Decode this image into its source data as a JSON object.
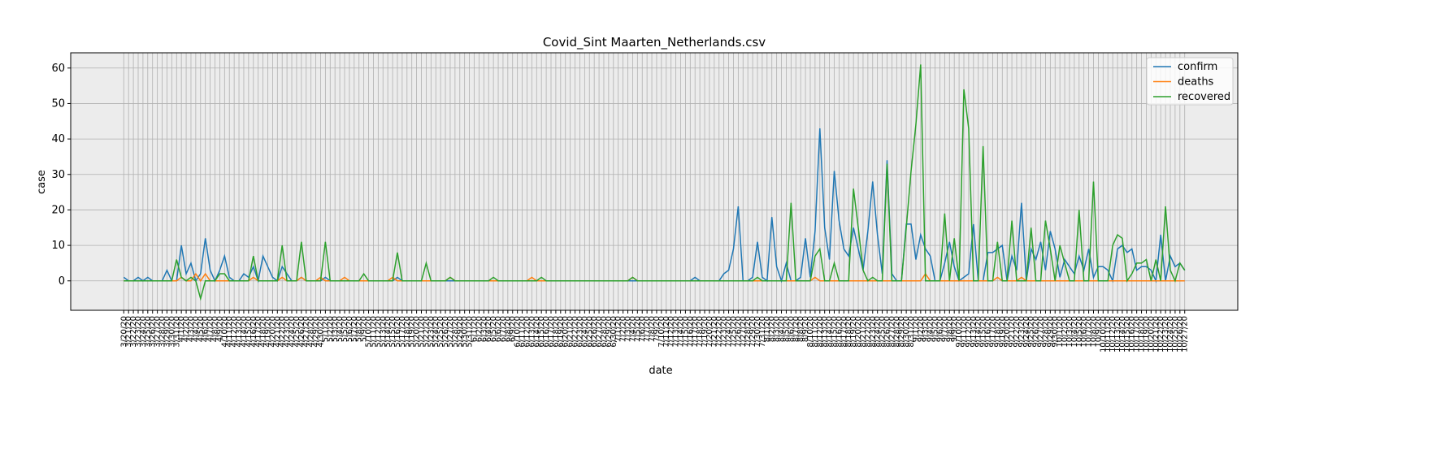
{
  "chart_data": {
    "type": "line",
    "title": "Covid_Sint Maarten_Netherlands.csv",
    "xlabel": "date",
    "ylabel": "case",
    "categories": [
      "3/20/20",
      "3/21/20",
      "3/22/20",
      "3/23/20",
      "3/24/20",
      "3/25/20",
      "3/26/20",
      "3/27/20",
      "3/28/20",
      "3/29/20",
      "3/30/20",
      "3/31/20",
      "4/1/20",
      "4/2/20",
      "4/3/20",
      "4/4/20",
      "4/5/20",
      "4/6/20",
      "4/7/20",
      "4/8/20",
      "4/9/20",
      "4/10/20",
      "4/11/20",
      "4/12/20",
      "4/13/20",
      "4/14/20",
      "4/15/20",
      "4/16/20",
      "4/17/20",
      "4/18/20",
      "4/19/20",
      "4/20/20",
      "4/21/20",
      "4/22/20",
      "4/23/20",
      "4/24/20",
      "4/25/20",
      "4/26/20",
      "4/27/20",
      "4/28/20",
      "4/29/20",
      "4/30/20",
      "5/1/20",
      "5/2/20",
      "5/3/20",
      "5/4/20",
      "5/5/20",
      "5/6/20",
      "5/7/20",
      "5/8/20",
      "5/9/20",
      "5/10/20",
      "5/11/20",
      "5/12/20",
      "5/13/20",
      "5/14/20",
      "5/15/20",
      "5/16/20",
      "5/17/20",
      "5/18/20",
      "5/19/20",
      "5/20/20",
      "5/21/20",
      "5/22/20",
      "5/23/20",
      "5/24/20",
      "5/25/20",
      "5/26/20",
      "5/27/20",
      "5/28/20",
      "5/29/20",
      "5/30/20",
      "5/31/20",
      "6/1/20",
      "6/2/20",
      "6/3/20",
      "6/4/20",
      "6/5/20",
      "6/6/20",
      "6/7/20",
      "6/8/20",
      "6/9/20",
      "6/10/20",
      "6/11/20",
      "6/12/20",
      "6/13/20",
      "6/14/20",
      "6/15/20",
      "6/16/20",
      "6/17/20",
      "6/18/20",
      "6/19/20",
      "6/20/20",
      "6/21/20",
      "6/22/20",
      "6/23/20",
      "6/24/20",
      "6/25/20",
      "6/26/20",
      "6/27/20",
      "6/28/20",
      "6/29/20",
      "6/30/20",
      "7/1/20",
      "7/2/20",
      "7/3/20",
      "7/4/20",
      "7/5/20",
      "7/6/20",
      "7/7/20",
      "7/8/20",
      "7/9/20",
      "7/10/20",
      "7/11/20",
      "7/12/20",
      "7/13/20",
      "7/14/20",
      "7/15/20",
      "7/16/20",
      "7/17/20",
      "7/18/20",
      "7/19/20",
      "7/20/20",
      "7/21/20",
      "7/22/20",
      "7/23/20",
      "7/24/20",
      "7/25/20",
      "7/26/20",
      "7/27/20",
      "7/28/20",
      "7/29/20",
      "7/30/20",
      "7/31/20",
      "8/1/20",
      "8/2/20",
      "8/3/20",
      "8/4/20",
      "8/5/20",
      "8/6/20",
      "8/7/20",
      "8/8/20",
      "8/9/20",
      "8/10/20",
      "8/11/20",
      "8/12/20",
      "8/13/20",
      "8/14/20",
      "8/15/20",
      "8/16/20",
      "8/17/20",
      "8/18/20",
      "8/19/20",
      "8/20/20",
      "8/21/20",
      "8/22/20",
      "8/23/20",
      "8/24/20",
      "8/25/20",
      "8/26/20",
      "8/27/20",
      "8/28/20",
      "8/29/20",
      "8/30/20",
      "8/31/20",
      "9/1/20",
      "9/2/20",
      "9/3/20",
      "9/4/20",
      "9/5/20",
      "9/6/20",
      "9/7/20",
      "9/8/20",
      "9/9/20",
      "9/10/20",
      "9/11/20",
      "9/12/20",
      "9/13/20",
      "9/14/20",
      "9/15/20",
      "9/16/20",
      "9/17/20",
      "9/18/20",
      "9/19/20",
      "9/20/20",
      "9/21/20",
      "9/22/20",
      "9/23/20",
      "9/24/20",
      "9/25/20",
      "9/26/20",
      "9/27/20",
      "9/28/20",
      "9/29/20",
      "9/30/20",
      "10/1/20",
      "10/2/20",
      "10/3/20",
      "10/4/20",
      "10/5/20",
      "10/6/20",
      "10/7/20",
      "10/8/20",
      "10/9/20",
      "10/10/20",
      "10/11/20",
      "10/12/20",
      "10/13/20",
      "10/14/20",
      "10/15/20",
      "10/16/20",
      "10/17/20",
      "10/18/20",
      "10/19/20",
      "10/20/20",
      "10/21/20",
      "10/22/20",
      "10/23/20",
      "10/24/20",
      "10/25/20",
      "10/26/20",
      "10/27/20"
    ],
    "series": [
      {
        "name": "confirm",
        "color": "#1f77b4",
        "values": [
          1,
          0,
          0,
          1,
          0,
          1,
          0,
          0,
          0,
          3,
          0,
          0,
          10,
          2,
          5,
          0,
          2,
          12,
          3,
          0,
          3,
          7,
          1,
          0,
          0,
          2,
          1,
          4,
          0,
          7,
          4,
          1,
          0,
          4,
          2,
          0,
          0,
          1,
          0,
          0,
          0,
          0,
          1,
          0,
          0,
          0,
          0,
          0,
          0,
          0,
          0,
          0,
          0,
          0,
          0,
          0,
          0,
          1,
          0,
          0,
          0,
          0,
          0,
          0,
          0,
          0,
          0,
          0,
          0,
          0,
          0,
          0,
          0,
          0,
          0,
          0,
          0,
          0,
          0,
          0,
          0,
          0,
          0,
          0,
          0,
          0,
          0,
          0,
          0,
          0,
          0,
          0,
          0,
          0,
          0,
          0,
          0,
          0,
          0,
          0,
          0,
          0,
          0,
          0,
          0,
          0,
          0,
          0,
          0,
          0,
          0,
          0,
          0,
          0,
          0,
          0,
          0,
          0,
          0,
          1,
          0,
          0,
          0,
          0,
          0,
          2,
          3,
          9,
          21,
          0,
          0,
          1,
          11,
          1,
          0,
          18,
          4,
          0,
          5,
          0,
          0,
          1,
          12,
          1,
          14,
          43,
          15,
          6,
          31,
          17,
          9,
          7,
          15,
          9,
          3,
          14,
          28,
          13,
          2,
          34,
          2,
          0,
          0,
          16,
          16,
          6,
          13,
          9,
          7,
          0,
          0,
          5,
          11,
          4,
          0,
          1,
          2,
          16,
          0,
          0,
          8,
          8,
          9,
          10,
          0,
          7,
          3,
          22,
          0,
          9,
          6,
          11,
          3,
          14,
          9,
          1,
          6,
          4,
          2,
          7,
          3,
          9,
          1,
          4,
          4,
          3,
          0,
          9,
          10,
          8,
          9,
          3,
          4,
          4,
          3,
          0,
          13,
          0,
          7,
          4,
          5,
          3
        ]
      },
      {
        "name": "deaths",
        "color": "#ff7f0e",
        "values": [
          0,
          0,
          0,
          0,
          0,
          0,
          0,
          0,
          0,
          0,
          0,
          0,
          1,
          0,
          0,
          2,
          0,
          2,
          0,
          0,
          0,
          0,
          0,
          0,
          0,
          0,
          0,
          1,
          0,
          0,
          0,
          0,
          0,
          1,
          0,
          0,
          0,
          1,
          0,
          0,
          0,
          1,
          0,
          0,
          0,
          0,
          1,
          0,
          0,
          0,
          0,
          0,
          0,
          0,
          0,
          0,
          1,
          0,
          0,
          0,
          0,
          0,
          0,
          0,
          0,
          0,
          0,
          0,
          1,
          0,
          0,
          0,
          0,
          0,
          0,
          0,
          0,
          0,
          0,
          0,
          0,
          0,
          0,
          0,
          0,
          1,
          0,
          0,
          0,
          0,
          0,
          0,
          0,
          0,
          0,
          0,
          0,
          0,
          0,
          0,
          0,
          0,
          0,
          0,
          0,
          0,
          1,
          0,
          0,
          0,
          0,
          0,
          0,
          0,
          0,
          0,
          0,
          0,
          0,
          0,
          0,
          0,
          0,
          0,
          0,
          0,
          0,
          0,
          0,
          0,
          0,
          0,
          0,
          0,
          0,
          0,
          0,
          0,
          0,
          0,
          0,
          0,
          0,
          0,
          1,
          0,
          0,
          0,
          0,
          0,
          0,
          0,
          0,
          0,
          0,
          0,
          0,
          0,
          0,
          0,
          0,
          0,
          0,
          0,
          0,
          0,
          0,
          2,
          0,
          0,
          0,
          0,
          0,
          0,
          0,
          0,
          0,
          0,
          0,
          0,
          0,
          0,
          1,
          0,
          0,
          0,
          0,
          1,
          0,
          0,
          0,
          0,
          0,
          0,
          0,
          0,
          0,
          0,
          0,
          0,
          0,
          0,
          0,
          0,
          0,
          0,
          0,
          0,
          0,
          0,
          0,
          0,
          0,
          0,
          0,
          0,
          0,
          0,
          0,
          0,
          0,
          0
        ]
      },
      {
        "name": "recovered",
        "color": "#2ca02c",
        "values": [
          0,
          0,
          0,
          0,
          0,
          0,
          0,
          0,
          0,
          0,
          0,
          6,
          1,
          0,
          1,
          0,
          -5,
          0,
          0,
          0,
          2,
          2,
          0,
          0,
          0,
          0,
          0,
          7,
          0,
          0,
          0,
          0,
          0,
          10,
          0,
          0,
          0,
          11,
          0,
          0,
          0,
          0,
          11,
          0,
          0,
          0,
          0,
          0,
          0,
          0,
          2,
          0,
          0,
          0,
          0,
          0,
          0,
          8,
          0,
          0,
          0,
          0,
          0,
          5,
          0,
          0,
          0,
          0,
          1,
          0,
          0,
          0,
          0,
          0,
          0,
          0,
          0,
          1,
          0,
          0,
          0,
          0,
          0,
          0,
          0,
          0,
          0,
          1,
          0,
          0,
          0,
          0,
          0,
          0,
          0,
          0,
          0,
          0,
          0,
          0,
          0,
          0,
          0,
          0,
          0,
          0,
          1,
          0,
          0,
          0,
          0,
          0,
          0,
          0,
          0,
          0,
          0,
          0,
          0,
          0,
          0,
          0,
          0,
          0,
          0,
          0,
          0,
          0,
          0,
          0,
          0,
          0,
          1,
          0,
          0,
          0,
          0,
          0,
          0,
          22,
          0,
          0,
          0,
          0,
          7,
          9,
          0,
          0,
          5,
          0,
          0,
          0,
          26,
          15,
          3,
          0,
          1,
          0,
          0,
          33,
          0,
          0,
          0,
          15,
          31,
          44,
          61,
          0,
          0,
          0,
          0,
          19,
          0,
          12,
          0,
          54,
          43,
          0,
          0,
          38,
          0,
          0,
          11,
          0,
          0,
          17,
          0,
          0,
          0,
          15,
          0,
          0,
          17,
          9,
          0,
          10,
          5,
          0,
          0,
          20,
          0,
          0,
          28,
          0,
          0,
          0,
          10,
          13,
          12,
          0,
          2,
          5,
          5,
          6,
          0,
          6,
          0,
          21,
          3,
          0,
          5,
          3
        ]
      }
    ],
    "ylim": [
      -8.3,
      64.3
    ],
    "yticks": [
      0,
      10,
      20,
      30,
      40,
      50,
      60
    ],
    "grid": true,
    "legend": "upper right"
  }
}
